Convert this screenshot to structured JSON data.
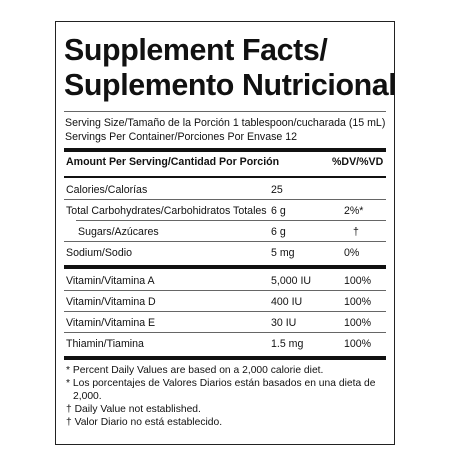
{
  "title_line1": "Supplement Facts/",
  "title_line2": "Suplemento Nutricional",
  "serving_size": "Serving Size/Tamaño de la Porción 1 tablespoon/cucharada (15 mL)",
  "servings_per_container": "Servings Per Container/Porciones Por Envase 12",
  "header_amount": "Amount Per Serving/Cantidad Por Porción",
  "header_dv": "%DV/%VD",
  "rows_group1": [
    {
      "name": "Calories/Calorías",
      "amount": "25",
      "dv": ""
    },
    {
      "name": "Total Carbohydrates/Carbohidratos Totales",
      "amount": "6 g",
      "dv": "2%*"
    },
    {
      "name": "Sugars/Azúcares",
      "amount": "6 g",
      "dv": "†"
    },
    {
      "name": "Sodium/Sodio",
      "amount": "5 mg",
      "dv": "0%"
    }
  ],
  "rows_group2": [
    {
      "name": "Vitamin/Vitamina A",
      "amount": "5,000 IU",
      "dv": "100%"
    },
    {
      "name": "Vitamin/Vitamina D",
      "amount": "400 IU",
      "dv": "100%"
    },
    {
      "name": "Vitamin/Vitamina E",
      "amount": "30 IU",
      "dv": "100%"
    },
    {
      "name": "Thiamin/Tiamina",
      "amount": "1.5 mg",
      "dv": "100%"
    }
  ],
  "footnotes": [
    "* Percent Daily Values are based on a 2,000 calorie diet.",
    "* Los porcentajes de Valores Diarios están basados en una dieta de",
    "2,000.",
    "† Daily Value not established.",
    "† Valor Diario no está establecido."
  ]
}
